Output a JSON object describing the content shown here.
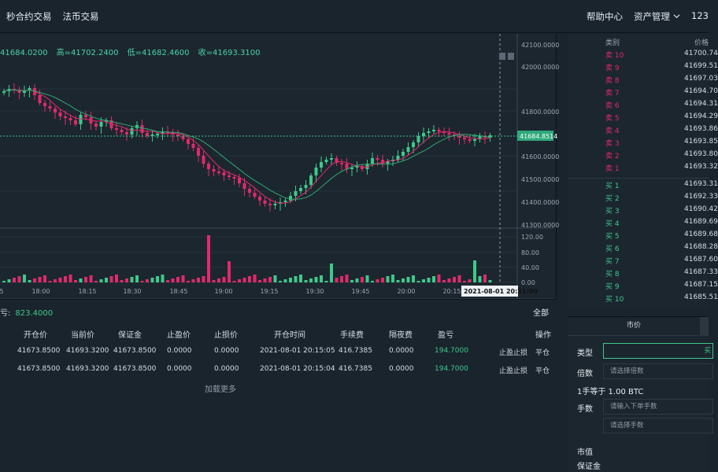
{
  "nav": {
    "left": [
      "秒合约交易",
      "法币交易"
    ],
    "help": "帮助中心",
    "assets": "资产管理",
    "user": "123"
  },
  "ohlc": {
    "open": "41684.0200",
    "high": "高=41702.2400",
    "low": "低=41682.4600",
    "close": "收=41693.3100"
  },
  "chart_data": {
    "type": "candlestick",
    "price_axis": [
      "42100.0000",
      "42000.0000",
      "41800.0000",
      "41600.0000",
      "41500.0000",
      "41400.0000",
      "41300.0000"
    ],
    "last_price": "41684.8514",
    "volume_axis": [
      "120.00",
      "80.00",
      "40.00",
      "0.00"
    ],
    "time_axis": [
      "5",
      "18:00",
      "18:15",
      "18:30",
      "18:45",
      "19:00",
      "19:15",
      "19:30",
      "19:45",
      "20:00",
      "20:15"
    ],
    "cursor_time": "2021-08-01 20:31:00",
    "colors": {
      "up": "#3ec98a",
      "down": "#e02a6b",
      "ma_fast": "#e02a6b",
      "ma_slow": "#2fa86e"
    }
  },
  "orderbook": {
    "headers": {
      "type": "类别",
      "price": "价格"
    },
    "asks": [
      {
        "label": "卖 10",
        "price": "41700.74"
      },
      {
        "label": "卖 9",
        "price": "41699.51"
      },
      {
        "label": "卖 8",
        "price": "41697.03"
      },
      {
        "label": "卖 7",
        "price": "41694.70"
      },
      {
        "label": "卖 6",
        "price": "41694.31"
      },
      {
        "label": "卖 5",
        "price": "41694.29"
      },
      {
        "label": "卖 4",
        "price": "41693.86"
      },
      {
        "label": "卖 3",
        "price": "41693.85"
      },
      {
        "label": "卖 2",
        "price": "41693.80"
      },
      {
        "label": "卖 1",
        "price": "41693.32"
      }
    ],
    "bids": [
      {
        "label": "买 1",
        "price": "41693.31"
      },
      {
        "label": "买 2",
        "price": "41692.33"
      },
      {
        "label": "买 3",
        "price": "41690.42"
      },
      {
        "label": "买 4",
        "price": "41689.69"
      },
      {
        "label": "买 5",
        "price": "41689.68"
      },
      {
        "label": "买 6",
        "price": "41688.28"
      },
      {
        "label": "买 7",
        "price": "41687.60"
      },
      {
        "label": "买 8",
        "price": "41687.33"
      },
      {
        "label": "买 9",
        "price": "41687.15"
      },
      {
        "label": "买 10",
        "price": "41685.51"
      }
    ]
  },
  "positions": {
    "summary_label": "亏:",
    "summary_value": "823.4000",
    "all_label": "全部",
    "headers": [
      "开仓价",
      "当前价",
      "保证金",
      "止盈价",
      "止损价",
      "开仓时间",
      "手续费",
      "隔夜费",
      "盈亏",
      "操作"
    ],
    "rows": [
      [
        "41673.8500",
        "41693.3200",
        "41673.8500",
        "0.0000",
        "0.0000",
        "2021-08-01 20:15:05",
        "416.7385",
        "0.0000",
        "194.7000",
        "止盈止损",
        "平仓"
      ],
      [
        "41673.8500",
        "41693.3200",
        "41673.8500",
        "0.0000",
        "0.0000",
        "2021-08-01 20:15:04",
        "416.7385",
        "0.0000",
        "194.7000",
        "止盈止损",
        "平仓"
      ]
    ],
    "load_more": "加载更多"
  },
  "trade": {
    "tab_market": "市价",
    "type_label": "类型",
    "type_value": "买",
    "leverage_label": "倍数",
    "leverage_placeholder": "请选择倍数",
    "lot_info": "1手等于 1.00 BTC",
    "qty_label": "手数",
    "qty_placeholder": "请输入下单手数",
    "lots_placeholder": "请选择手数",
    "market_value_label": "市值",
    "margin_label": "保证金"
  }
}
